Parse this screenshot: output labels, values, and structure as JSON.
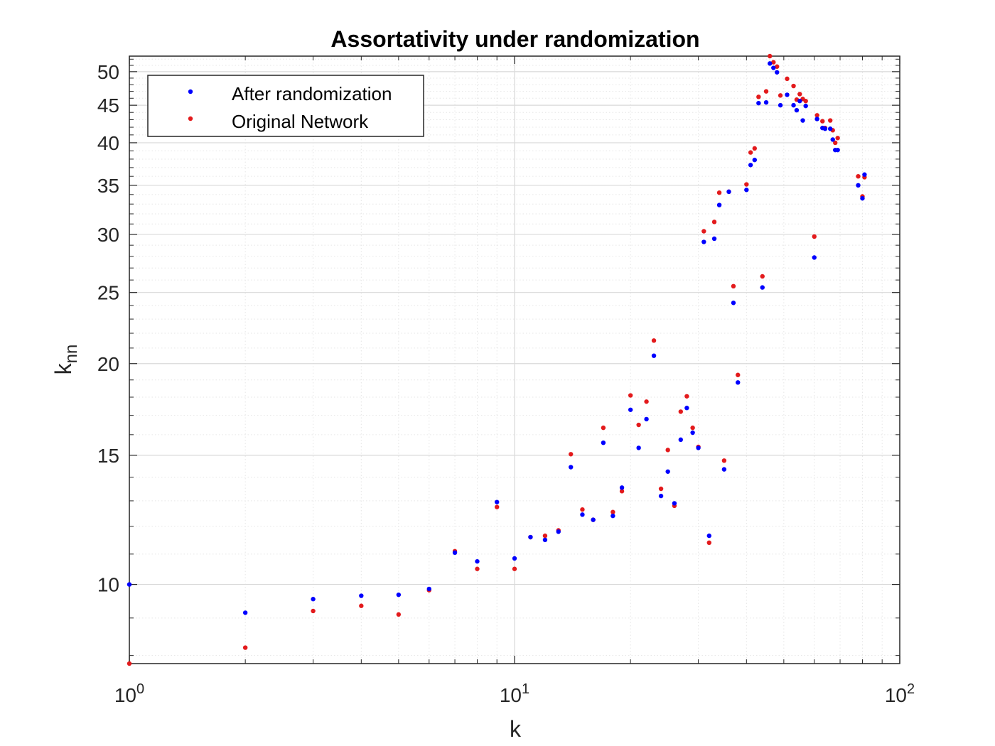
{
  "chart_data": {
    "type": "scatter",
    "title": "Assortativity under randomization",
    "xlabel": "k",
    "ylabel_base": "k",
    "ylabel_sub": "nn",
    "xscale": "log",
    "yscale": "log",
    "xlim": [
      1,
      100
    ],
    "ylim": [
      7.8,
      52.5
    ],
    "grid": true,
    "minor_grid": true,
    "legend_position": "top-left",
    "x_ticks": [
      {
        "value": 1,
        "base": "10",
        "exp": "0"
      },
      {
        "value": 10,
        "base": "10",
        "exp": "1"
      },
      {
        "value": 100,
        "base": "10",
        "exp": "2"
      }
    ],
    "y_ticks": [
      {
        "value": 10,
        "label": "10"
      },
      {
        "value": 15,
        "label": "15"
      },
      {
        "value": 20,
        "label": "20"
      },
      {
        "value": 25,
        "label": "25"
      },
      {
        "value": 30,
        "label": "30"
      },
      {
        "value": 35,
        "label": "35"
      },
      {
        "value": 40,
        "label": "40"
      },
      {
        "value": 45,
        "label": "45"
      },
      {
        "value": 50,
        "label": "50"
      }
    ],
    "series": [
      {
        "name": "After randomization",
        "color": "#0000ff",
        "points": [
          [
            1,
            10.0
          ],
          [
            2,
            9.15
          ],
          [
            3,
            9.55
          ],
          [
            4,
            9.65
          ],
          [
            5,
            9.68
          ],
          [
            6,
            9.86
          ],
          [
            7,
            11.05
          ],
          [
            8,
            10.75
          ],
          [
            9,
            12.95
          ],
          [
            10,
            10.85
          ],
          [
            11,
            11.6
          ],
          [
            12,
            11.5
          ],
          [
            13,
            11.8
          ],
          [
            14,
            14.45
          ],
          [
            15,
            12.45
          ],
          [
            16,
            12.25
          ],
          [
            17,
            15.6
          ],
          [
            18,
            12.4
          ],
          [
            19,
            13.55
          ],
          [
            20,
            17.3
          ],
          [
            21,
            15.35
          ],
          [
            22,
            16.8
          ],
          [
            23,
            20.5
          ],
          [
            24,
            13.2
          ],
          [
            25,
            14.25
          ],
          [
            26,
            12.9
          ],
          [
            27,
            15.75
          ],
          [
            28,
            17.4
          ],
          [
            29,
            16.1
          ],
          [
            30,
            15.35
          ],
          [
            31,
            29.3
          ],
          [
            32,
            11.65
          ],
          [
            33,
            29.6
          ],
          [
            34,
            32.9
          ],
          [
            35,
            14.35
          ],
          [
            36,
            34.3
          ],
          [
            37,
            24.2
          ],
          [
            38,
            18.85
          ],
          [
            40,
            34.5
          ],
          [
            41,
            37.3
          ],
          [
            42,
            37.9
          ],
          [
            43,
            45.3
          ],
          [
            44,
            25.4
          ],
          [
            45,
            45.4
          ],
          [
            46,
            51.3
          ],
          [
            47,
            50.6
          ],
          [
            48,
            49.9
          ],
          [
            49,
            45.0
          ],
          [
            51,
            46.5
          ],
          [
            53,
            45.0
          ],
          [
            54,
            44.3
          ],
          [
            55,
            45.6
          ],
          [
            56,
            42.9
          ],
          [
            57,
            44.9
          ],
          [
            60,
            27.9
          ],
          [
            61,
            43.1
          ],
          [
            63,
            41.9
          ],
          [
            64,
            41.8
          ],
          [
            66,
            41.8
          ],
          [
            67,
            40.4
          ],
          [
            68,
            39.1
          ],
          [
            69,
            39.1
          ],
          [
            78,
            35.0
          ],
          [
            80,
            33.6
          ],
          [
            81,
            36.2
          ]
        ]
      },
      {
        "name": "Original Network",
        "color": "#e31a1c",
        "points": [
          [
            1,
            7.8
          ],
          [
            2,
            8.2
          ],
          [
            3,
            9.2
          ],
          [
            4,
            9.35
          ],
          [
            5,
            9.1
          ],
          [
            6,
            9.82
          ],
          [
            7,
            11.1
          ],
          [
            8,
            10.5
          ],
          [
            9,
            12.75
          ],
          [
            10,
            10.5
          ],
          [
            11,
            11.6
          ],
          [
            12,
            11.65
          ],
          [
            13,
            11.85
          ],
          [
            14,
            15.05
          ],
          [
            15,
            12.65
          ],
          [
            16,
            12.25
          ],
          [
            17,
            16.35
          ],
          [
            18,
            12.55
          ],
          [
            19,
            13.4
          ],
          [
            20,
            18.1
          ],
          [
            21,
            16.5
          ],
          [
            22,
            17.75
          ],
          [
            23,
            21.5
          ],
          [
            24,
            13.5
          ],
          [
            25,
            15.25
          ],
          [
            26,
            12.8
          ],
          [
            27,
            17.2
          ],
          [
            28,
            18.05
          ],
          [
            29,
            16.35
          ],
          [
            30,
            15.4
          ],
          [
            31,
            30.3
          ],
          [
            32,
            11.4
          ],
          [
            33,
            31.2
          ],
          [
            34,
            34.2
          ],
          [
            35,
            14.75
          ],
          [
            36,
            34.3
          ],
          [
            37,
            25.5
          ],
          [
            38,
            19.3
          ],
          [
            40,
            35.1
          ],
          [
            41,
            38.8
          ],
          [
            42,
            39.3
          ],
          [
            43,
            46.2
          ],
          [
            44,
            26.3
          ],
          [
            45,
            47.0
          ],
          [
            46,
            52.5
          ],
          [
            47,
            51.5
          ],
          [
            48,
            50.8
          ],
          [
            49,
            46.4
          ],
          [
            51,
            48.9
          ],
          [
            53,
            47.8
          ],
          [
            54,
            45.8
          ],
          [
            55,
            46.6
          ],
          [
            56,
            45.9
          ],
          [
            57,
            45.6
          ],
          [
            60,
            29.8
          ],
          [
            61,
            43.6
          ],
          [
            63,
            42.8
          ],
          [
            64,
            41.9
          ],
          [
            66,
            42.9
          ],
          [
            67,
            41.6
          ],
          [
            68,
            40.0
          ],
          [
            69,
            40.6
          ],
          [
            78,
            36.0
          ],
          [
            80,
            33.8
          ],
          [
            81,
            35.9
          ]
        ]
      }
    ]
  }
}
